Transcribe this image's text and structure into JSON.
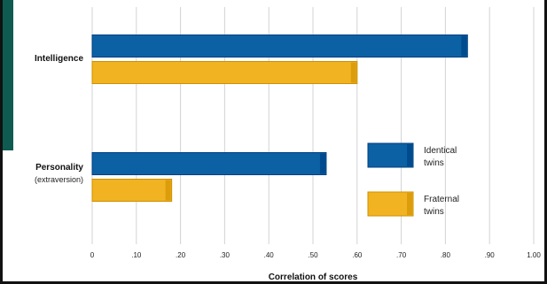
{
  "chart_data": {
    "type": "bar",
    "orientation": "horizontal",
    "categories": [
      {
        "label": "Intelligence",
        "sublabel": ""
      },
      {
        "label": "Personality",
        "sublabel": "(extraversion)"
      }
    ],
    "series": [
      {
        "name": "Identical twins",
        "legend_lines": [
          "Identical",
          "twins"
        ],
        "color": "#0b61a4",
        "values": [
          0.85,
          0.53
        ]
      },
      {
        "name": "Fraternal twins",
        "legend_lines": [
          "Fraternal",
          "twins"
        ],
        "color": "#f1b321",
        "values": [
          0.6,
          0.18
        ]
      }
    ],
    "xlabel": "Correlation of scores",
    "xlim": [
      0,
      1.0
    ],
    "xticks": [
      "0",
      ".10",
      ".20",
      ".30",
      ".40",
      ".50",
      ".60",
      ".70",
      ".80",
      ".90",
      "1.00"
    ],
    "grid": true,
    "legend": {
      "position": "right"
    }
  }
}
